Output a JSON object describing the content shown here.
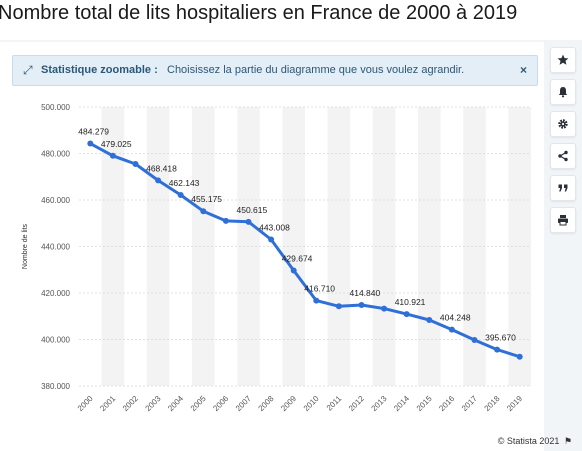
{
  "page": {
    "title": "Nombre total de lits hospitaliers en France de 2000 à 2019"
  },
  "notice": {
    "icon": "expand-arrows-icon",
    "title": "Statistique zoomable :",
    "text": "Choisissez la partie du diagramme que vous voulez agrandir.",
    "close_label": "×"
  },
  "toolbar": [
    {
      "name": "favorite-button",
      "icon": "star-icon"
    },
    {
      "name": "notification-button",
      "icon": "bell-icon"
    },
    {
      "name": "settings-button",
      "icon": "gear-icon"
    },
    {
      "name": "share-button",
      "icon": "share-icon"
    },
    {
      "name": "cite-button",
      "icon": "quote-icon"
    },
    {
      "name": "print-button",
      "icon": "printer-icon"
    }
  ],
  "credit": {
    "text": "© Statista 2021",
    "icon": "flag-icon"
  },
  "colors": {
    "line": "#2f6fd8",
    "band": "#f3f3f3",
    "grid": "#d9d9d9",
    "accent": "#2b5877"
  },
  "chart_data": {
    "type": "line",
    "title": "",
    "xlabel": "",
    "ylabel": "Nombre de lits",
    "ylim": [
      380000,
      500000
    ],
    "yticks": [
      380000,
      400000,
      420000,
      440000,
      460000,
      480000,
      500000
    ],
    "ytick_labels": [
      "380.000",
      "400.000",
      "420.000",
      "440.000",
      "460.000",
      "480.000",
      "500.000"
    ],
    "grid": true,
    "categories": [
      "2000",
      "2001",
      "2002",
      "2003",
      "2004",
      "2005",
      "2006",
      "2007",
      "2008",
      "2009",
      "2010",
      "2011",
      "2012",
      "2013",
      "2014",
      "2015",
      "2016",
      "2017",
      "2018",
      "2019"
    ],
    "series": [
      {
        "values": [
          484279,
          479025,
          475500,
          468418,
          462143,
          455175,
          451000,
          450615,
          443008,
          429674,
          416710,
          414300,
          414840,
          413300,
          410921,
          408400,
          404248,
          399800,
          395670,
          392600
        ],
        "data_labels": [
          "484.279",
          "479.025",
          null,
          "468.418",
          "462.143",
          "455.175",
          null,
          "450.615",
          "443.008",
          "429.674",
          "416.710",
          null,
          "414.840",
          null,
          "410.921",
          null,
          "404.248",
          null,
          "395.670",
          null
        ]
      }
    ]
  }
}
